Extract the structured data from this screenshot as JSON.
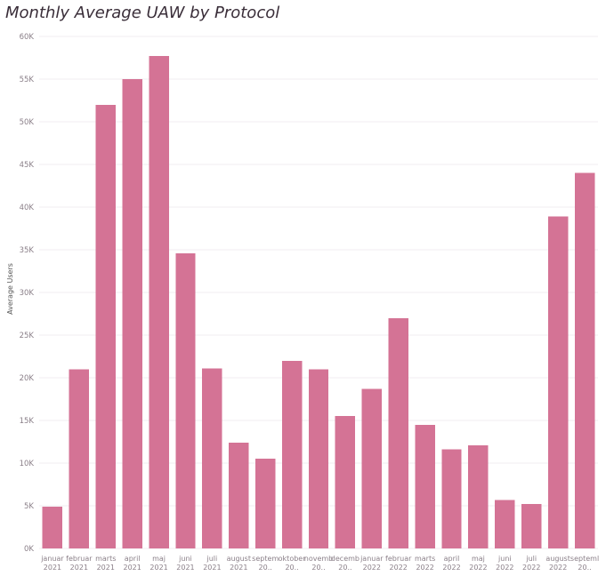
{
  "chart_data": {
    "type": "bar",
    "title": "Monthly Average UAW by Protocol",
    "xlabel": "",
    "ylabel": "Average Users",
    "ylim": [
      0,
      60000
    ],
    "y_ticks": [
      0,
      5000,
      10000,
      15000,
      20000,
      25000,
      30000,
      35000,
      40000,
      45000,
      50000,
      55000,
      60000
    ],
    "y_tick_labels": [
      "0K",
      "5K",
      "10K",
      "15K",
      "20K",
      "25K",
      "30K",
      "35K",
      "40K",
      "45K",
      "50K",
      "55K",
      "60K"
    ],
    "grid": true,
    "bar_color": "#d47395",
    "categories": [
      [
        "januar",
        "2021"
      ],
      [
        "februar",
        "2021"
      ],
      [
        "marts",
        "2021"
      ],
      [
        "april",
        "2021"
      ],
      [
        "maj",
        "2021"
      ],
      [
        "juni",
        "2021"
      ],
      [
        "juli",
        "2021"
      ],
      [
        "august",
        "2021"
      ],
      [
        "septem",
        "20.."
      ],
      [
        "oktober",
        "20.."
      ],
      [
        "novemb",
        "20.."
      ],
      [
        "decemb",
        "20.."
      ],
      [
        "januar",
        "2022"
      ],
      [
        "februar",
        "2022"
      ],
      [
        "marts",
        "2022"
      ],
      [
        "april",
        "2022"
      ],
      [
        "maj",
        "2022"
      ],
      [
        "juni",
        "2022"
      ],
      [
        "juli",
        "2022"
      ],
      [
        "august",
        "2022"
      ],
      [
        "septeml",
        "20.."
      ]
    ],
    "values": [
      4900,
      21000,
      52000,
      55000,
      57700,
      34600,
      21100,
      12400,
      10500,
      22000,
      21000,
      15500,
      18700,
      27000,
      14500,
      11600,
      12100,
      5700,
      5200,
      38900,
      44000
    ]
  }
}
